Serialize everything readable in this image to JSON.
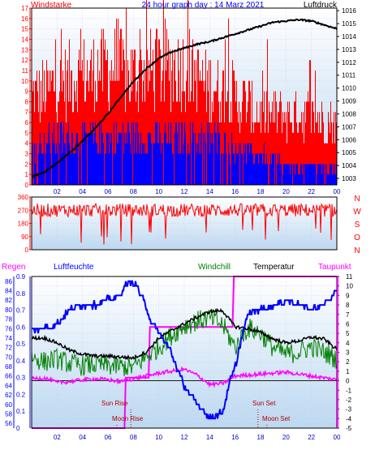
{
  "titles": {
    "windstarke": "Windstarke",
    "header": "24 hour graph day : 14 Marz 2021",
    "luftdruck": "Luftdruck",
    "regen": "Regen",
    "luftfeuchte": "Luftfeuchte",
    "windchill": "Windchill",
    "temperatur": "Temperatur",
    "taupunkt": "Taupunkt",
    "sun_rise": "Sun Rise",
    "moon_rise": "Moon Rise",
    "sun_set": "Sun Set",
    "moon_set": "Moon Set"
  },
  "colors": {
    "windstarke": "#ff0000",
    "header": "#0000ff",
    "luftdruck": "#000000",
    "regen": "#ff00ff",
    "luftfeuchte": "#0000ff",
    "windchill": "#008000",
    "temperatur": "#000000",
    "taupunkt": "#ff00ff",
    "bg_top": "#ffffff",
    "bg_bottom": "#bcd8f0"
  },
  "chart_data": [
    {
      "type": "line",
      "name": "wind-pressure",
      "x_ticks": [
        "02",
        "04",
        "06",
        "08",
        "10",
        "12",
        "14",
        "16",
        "18",
        "20",
        "22",
        "00"
      ],
      "left_ticks": [
        "0",
        "1",
        "2",
        "3",
        "4",
        "5",
        "6",
        "7",
        "8",
        "9",
        "10",
        "11",
        "12",
        "13",
        "14",
        "15",
        "16",
        "17"
      ],
      "right_ticks": [
        "1003",
        "1004",
        "1005",
        "1006",
        "1007",
        "1008",
        "1009",
        "1010",
        "1011",
        "1012",
        "1013",
        "1014",
        "1015",
        "1016"
      ],
      "ylim_left": [
        0,
        17
      ],
      "ylim_right": [
        1002.5,
        1016.2
      ],
      "pressure_hours": [
        0,
        1,
        2,
        3,
        4,
        5,
        6,
        7,
        8,
        9,
        10,
        11,
        12,
        13,
        14,
        15,
        16,
        17,
        18,
        19,
        20,
        21,
        22,
        23,
        24
      ],
      "pressure": [
        1003.1,
        1003.5,
        1004.2,
        1005.0,
        1005.9,
        1006.9,
        1008.0,
        1009.3,
        1010.5,
        1011.5,
        1012.3,
        1012.8,
        1013.1,
        1013.4,
        1013.6,
        1013.9,
        1014.2,
        1014.5,
        1014.8,
        1015.1,
        1015.2,
        1015.3,
        1015.2,
        1014.9,
        1014.6
      ],
      "gust_max_hours": [
        0,
        2,
        4,
        6,
        8,
        10,
        12,
        14,
        16,
        18,
        20,
        22,
        24
      ],
      "gust_max": [
        9,
        10,
        11,
        12,
        11,
        12,
        12,
        10,
        9,
        7,
        7,
        7,
        6
      ],
      "wind_avg_hours": [
        0,
        2,
        4,
        6,
        8,
        10,
        12,
        14,
        16,
        18,
        20,
        22,
        24
      ],
      "wind_avg": [
        4,
        5,
        5,
        5,
        5,
        5,
        5,
        5,
        4,
        3,
        2,
        2,
        2
      ]
    },
    {
      "type": "line",
      "name": "wind-direction",
      "x_ticks": [],
      "left_ticks": [
        "0",
        "90",
        "180",
        "270",
        "360"
      ],
      "right_ticks": [
        "N",
        "W",
        "S",
        "O",
        "N"
      ],
      "ylim": [
        0,
        360
      ],
      "mean": 270,
      "spread": 45
    },
    {
      "type": "line",
      "name": "humidity-temperature",
      "x_ticks": [
        "02",
        "04",
        "06",
        "08",
        "10",
        "12",
        "14",
        "16",
        "18",
        "20",
        "22",
        "00"
      ],
      "rain_ticks": [
        "0",
        "0.1",
        "0.2",
        "0.3",
        "0.4",
        "0.5",
        "0.6",
        "0.7",
        "0.8",
        "0.9"
      ],
      "humidity_ticks": [
        "56",
        "58",
        "60",
        "62",
        "64",
        "66",
        "68",
        "70",
        "72",
        "74",
        "76",
        "78",
        "80",
        "82",
        "84",
        "86"
      ],
      "temp_ticks": [
        "-5",
        "-4",
        "-3",
        "-2",
        "-1",
        "0",
        "1",
        "2",
        "3",
        "4",
        "5",
        "6",
        "7",
        "8",
        "9",
        "10",
        "11"
      ],
      "ylim_rain": [
        0,
        0.9
      ],
      "ylim_humidity": [
        55,
        87
      ],
      "ylim_temp": [
        -5,
        11
      ],
      "temperatur_hours": [
        0,
        1,
        2,
        3,
        4,
        5,
        6,
        7,
        8,
        9,
        10,
        11,
        12,
        13,
        14,
        15,
        16,
        17,
        18,
        19,
        20,
        21,
        22,
        23,
        24
      ],
      "temperatur": [
        4.5,
        4.5,
        4.0,
        3.2,
        2.8,
        2.6,
        2.6,
        2.5,
        2.4,
        3.0,
        4.5,
        5.3,
        6.0,
        6.7,
        7.3,
        7.4,
        5.7,
        5.5,
        5.1,
        4.4,
        4.0,
        4.2,
        4.6,
        4.4,
        3.3
      ],
      "windchill_hours": [
        0,
        1,
        2,
        3,
        4,
        5,
        6,
        7,
        8,
        9,
        10,
        11,
        12,
        13,
        14,
        15,
        16,
        17,
        18,
        19,
        20,
        21,
        22,
        23,
        24
      ],
      "windchill": [
        2.5,
        2.0,
        2.3,
        1.8,
        1.6,
        1.7,
        1.6,
        1.5,
        1.4,
        2.5,
        3.5,
        4.8,
        5.8,
        6.3,
        6.6,
        5.9,
        3.5,
        5.6,
        5.0,
        3.5,
        2.8,
        3.0,
        3.6,
        3.0,
        2.3
      ],
      "taupunkt_hours": [
        0,
        1,
        2,
        3,
        4,
        5,
        6,
        7,
        8,
        9,
        10,
        11,
        12,
        13,
        14,
        15,
        16,
        17,
        18,
        19,
        20,
        21,
        22,
        23,
        24
      ],
      "taupunkt": [
        0.2,
        0.3,
        -0.2,
        -0.1,
        0.1,
        0.2,
        0.1,
        -0.1,
        0.2,
        0.5,
        0.8,
        1.0,
        1.2,
        0.6,
        -0.4,
        -0.3,
        0.5,
        0.6,
        0.7,
        0.8,
        0.9,
        0.7,
        0.5,
        0.3,
        0.1
      ],
      "luftfeuchte_hours": [
        0,
        1,
        2,
        3,
        4,
        5,
        6,
        7,
        7.3,
        8,
        8.8,
        9.5,
        10,
        11,
        11.5,
        12,
        12.5,
        13,
        13.5,
        14,
        14.5,
        15,
        15.5,
        16,
        16.5,
        17,
        18,
        19,
        20,
        21,
        22,
        23,
        24
      ],
      "luftfeuchte": [
        76,
        76,
        77,
        80,
        81,
        81,
        82,
        83,
        85,
        86,
        82,
        77,
        75,
        71,
        67,
        64,
        62,
        60,
        59,
        57,
        58,
        58,
        64,
        68,
        74,
        79,
        80,
        81,
        82,
        81,
        80,
        81,
        84
      ],
      "regen_hours": [
        0,
        7.3,
        7.4,
        9.2,
        9.3,
        15.8,
        15.9,
        24
      ],
      "regen": [
        0,
        0,
        0.3,
        0.3,
        0.6,
        0.6,
        0.9,
        0.9
      ]
    }
  ]
}
